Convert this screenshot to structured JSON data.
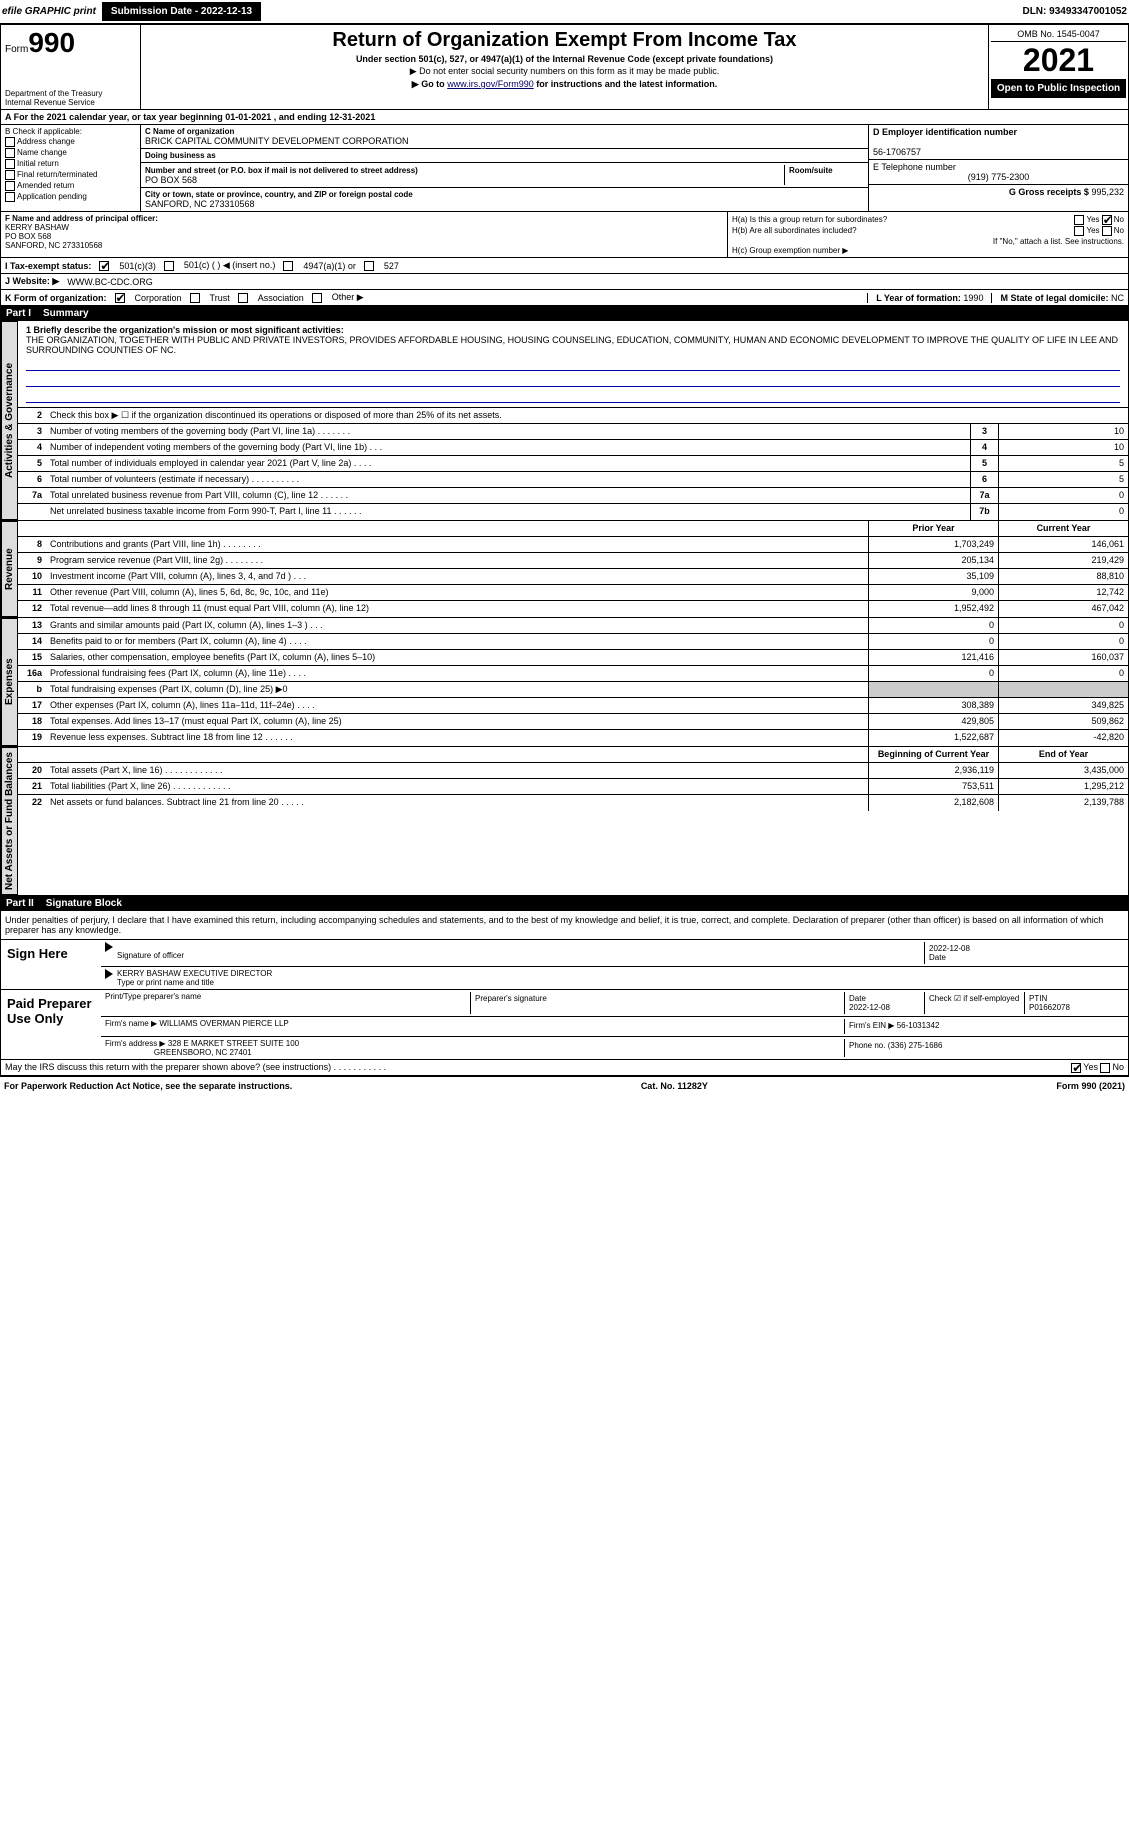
{
  "topbar": {
    "efile": "efile GRAPHIC print",
    "submission_label": "Submission Date - 2022-12-13",
    "dln": "DLN: 93493347001052"
  },
  "header": {
    "form_prefix": "Form",
    "form_num": "990",
    "title": "Return of Organization Exempt From Income Tax",
    "subtitle": "Under section 501(c), 527, or 4947(a)(1) of the Internal Revenue Code (except private foundations)",
    "note1": "▶ Do not enter social security numbers on this form as it may be made public.",
    "note2_pre": "▶ Go to ",
    "note2_link": "www.irs.gov/Form990",
    "note2_post": " for instructions and the latest information.",
    "dept": "Department of the Treasury",
    "irs": "Internal Revenue Service",
    "omb": "OMB No. 1545-0047",
    "year": "2021",
    "inspect": "Open to Public Inspection"
  },
  "rowA": {
    "text": "A For the 2021 calendar year, or tax year beginning 01-01-2021    , and ending 12-31-2021"
  },
  "colB": {
    "label": "B Check if applicable:",
    "opts": [
      "Address change",
      "Name change",
      "Initial return",
      "Final return/terminated",
      "Amended return",
      "Application pending"
    ]
  },
  "colC": {
    "name_label": "C Name of organization",
    "name": "BRICK CAPITAL COMMUNITY DEVELOPMENT CORPORATION",
    "dba_label": "Doing business as",
    "addr_label": "Number and street (or P.O. box if mail is not delivered to street address)",
    "room_label": "Room/suite",
    "addr": "PO BOX 568",
    "city_label": "City or town, state or province, country, and ZIP or foreign postal code",
    "city": "SANFORD, NC  273310568"
  },
  "colD": {
    "ein_label": "D Employer identification number",
    "ein": "56-1706757",
    "tel_label": "E Telephone number",
    "tel": "(919) 775-2300",
    "gross_label": "G Gross receipts $",
    "gross": "995,232"
  },
  "rowF": {
    "label": "F Name and address of principal officer:",
    "name": "KERRY BASHAW",
    "addr1": "PO BOX 568",
    "addr2": "SANFORD, NC  273310568"
  },
  "rowH": {
    "ha_label": "H(a)  Is this a group return for subordinates?",
    "hb_label": "H(b)  Are all subordinates included?",
    "hb_note": "If \"No,\" attach a list. See instructions.",
    "hc_label": "H(c)  Group exemption number ▶",
    "yes": "Yes",
    "no": "No"
  },
  "rowI": {
    "label": "I   Tax-exempt status:",
    "o1": "501(c)(3)",
    "o2": "501(c) (   ) ◀ (insert no.)",
    "o3": "4947(a)(1) or",
    "o4": "527"
  },
  "rowJ": {
    "label": "J   Website: ▶",
    "val": "WWW.BC-CDC.ORG"
  },
  "rowK": {
    "label": "K Form of organization:",
    "o1": "Corporation",
    "o2": "Trust",
    "o3": "Association",
    "o4": "Other ▶",
    "l_label": "L Year of formation:",
    "l_val": "1990",
    "m_label": "M State of legal domicile:",
    "m_val": "NC"
  },
  "part1": {
    "num": "Part I",
    "title": "Summary"
  },
  "mission": {
    "label": "1 Briefly describe the organization's mission or most significant activities:",
    "text": "THE ORGANIZATION, TOGETHER WITH PUBLIC AND PRIVATE INVESTORS, PROVIDES AFFORDABLE HOUSING, HOUSING COUNSELING, EDUCATION, COMMUNITY, HUMAN AND ECONOMIC DEVELOPMENT TO IMPROVE THE QUALITY OF LIFE IN LEE AND SURROUNDING COUNTIES OF NC."
  },
  "governance": {
    "tab": "Activities & Governance",
    "r2": "Check this box ▶ ☐  if the organization discontinued its operations or disposed of more than 25% of its net assets.",
    "rows": [
      {
        "n": "3",
        "d": "Number of voting members of the governing body (Part VI, line 1a)  .    .    .    .    .    .    .",
        "b": "3",
        "v": "10"
      },
      {
        "n": "4",
        "d": "Number of independent voting members of the governing body (Part VI, line 1b)   .    .    .",
        "b": "4",
        "v": "10"
      },
      {
        "n": "5",
        "d": "Total number of individuals employed in calendar year 2021 (Part V, line 2a)   .    .    .    .",
        "b": "5",
        "v": "5"
      },
      {
        "n": "6",
        "d": "Total number of volunteers (estimate if necessary)    .    .    .    .    .    .    .    .    .    .",
        "b": "6",
        "v": "5"
      },
      {
        "n": "7a",
        "d": "Total unrelated business revenue from Part VIII, column (C), line 12   .    .    .    .    .    .",
        "b": "7a",
        "v": "0"
      },
      {
        "n": "",
        "d": "Net unrelated business taxable income from Form 990-T, Part I, line 11  .    .    .    .    .    .",
        "b": "7b",
        "v": "0"
      }
    ]
  },
  "two_col_hdr": {
    "prior": "Prior Year",
    "current": "Current Year"
  },
  "revenue": {
    "tab": "Revenue",
    "rows": [
      {
        "n": "8",
        "d": "Contributions and grants (Part VIII, line 1h)   .    .    .    .    .    .    .    .",
        "p": "1,703,249",
        "c": "146,061"
      },
      {
        "n": "9",
        "d": "Program service revenue (Part VIII, line 2g)   .    .    .    .    .    .    .    .",
        "p": "205,134",
        "c": "219,429"
      },
      {
        "n": "10",
        "d": "Investment income (Part VIII, column (A), lines 3, 4, and 7d )    .    .    .",
        "p": "35,109",
        "c": "88,810"
      },
      {
        "n": "11",
        "d": "Other revenue (Part VIII, column (A), lines 5, 6d, 8c, 9c, 10c, and 11e)",
        "p": "9,000",
        "c": "12,742"
      },
      {
        "n": "12",
        "d": "Total revenue—add lines 8 through 11 (must equal Part VIII, column (A), line 12)",
        "p": "1,952,492",
        "c": "467,042"
      }
    ]
  },
  "expenses": {
    "tab": "Expenses",
    "rows": [
      {
        "n": "13",
        "d": "Grants and similar amounts paid (Part IX, column (A), lines 1–3 )  .    .    .",
        "p": "0",
        "c": "0"
      },
      {
        "n": "14",
        "d": "Benefits paid to or for members (Part IX, column (A), line 4)   .    .    .    .",
        "p": "0",
        "c": "0"
      },
      {
        "n": "15",
        "d": "Salaries, other compensation, employee benefits (Part IX, column (A), lines 5–10)",
        "p": "121,416",
        "c": "160,037"
      },
      {
        "n": "16a",
        "d": "Professional fundraising fees (Part IX, column (A), line 11e)    .    .    .    .",
        "p": "0",
        "c": "0"
      },
      {
        "n": "b",
        "d": "Total fundraising expenses (Part IX, column (D), line 25) ▶0",
        "p": "",
        "c": "",
        "shaded": true
      },
      {
        "n": "17",
        "d": "Other expenses (Part IX, column (A), lines 11a–11d, 11f–24e)   .    .    .    .",
        "p": "308,389",
        "c": "349,825"
      },
      {
        "n": "18",
        "d": "Total expenses. Add lines 13–17 (must equal Part IX, column (A), line 25)",
        "p": "429,805",
        "c": "509,862"
      },
      {
        "n": "19",
        "d": "Revenue less expenses. Subtract line 18 from line 12 .    .    .    .    .    .",
        "p": "1,522,687",
        "c": "-42,820"
      }
    ]
  },
  "netassets": {
    "tab": "Net Assets or Fund Balances",
    "hdr": {
      "prior": "Beginning of Current Year",
      "current": "End of Year"
    },
    "rows": [
      {
        "n": "20",
        "d": "Total assets (Part X, line 16)   .    .    .    .    .    .    .    .    .    .    .    .",
        "p": "2,936,119",
        "c": "3,435,000"
      },
      {
        "n": "21",
        "d": "Total liabilities (Part X, line 26)  .    .    .    .    .    .    .    .    .    .    .    .",
        "p": "753,511",
        "c": "1,295,212"
      },
      {
        "n": "22",
        "d": "Net assets or fund balances. Subtract line 21 from line 20  .    .    .    .    .",
        "p": "2,182,608",
        "c": "2,139,788"
      }
    ]
  },
  "part2": {
    "num": "Part II",
    "title": "Signature Block"
  },
  "sig_decl": "Under penalties of perjury, I declare that I have examined this return, including accompanying schedules and statements, and to the best of my knowledge and belief, it is true, correct, and complete. Declaration of preparer (other than officer) is based on all information of which preparer has any knowledge.",
  "sign": {
    "label": "Sign Here",
    "sig_label": "Signature of officer",
    "date": "2022-12-08",
    "date_label": "Date",
    "name": "KERRY BASHAW  EXECUTIVE DIRECTOR",
    "name_label": "Type or print name and title"
  },
  "preparer": {
    "label": "Paid Preparer Use Only",
    "print_label": "Print/Type preparer's name",
    "psig_label": "Preparer's signature",
    "pdate_label": "Date",
    "pdate": "2022-12-08",
    "check_label": "Check ☑ if self-employed",
    "ptin_label": "PTIN",
    "ptin": "P01662078",
    "firm_name_label": "Firm's name    ▶",
    "firm_name": "WILLIAMS OVERMAN PIERCE LLP",
    "firm_ein_label": "Firm's EIN ▶",
    "firm_ein": "56-1031342",
    "firm_addr_label": "Firm's address ▶",
    "firm_addr1": "328 E MARKET STREET SUITE 100",
    "firm_addr2": "GREENSBORO, NC  27401",
    "phone_label": "Phone no.",
    "phone": "(336) 275-1686"
  },
  "may_irs": {
    "q": "May the IRS discuss this return with the preparer shown above? (see instructions)   .    .    .    .    .    .    .    .    .    .    .",
    "yes": "Yes",
    "no": "No"
  },
  "footer": {
    "left": "For Paperwork Reduction Act Notice, see the separate instructions.",
    "mid": "Cat. No. 11282Y",
    "right": "Form 990 (2021)"
  }
}
